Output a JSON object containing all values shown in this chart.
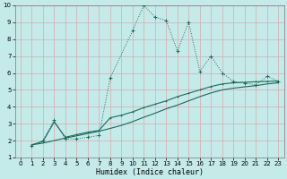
{
  "xlabel": "Humidex (Indice chaleur)",
  "xlim": [
    -0.5,
    23.5
  ],
  "ylim": [
    1,
    10
  ],
  "yticks": [
    1,
    2,
    3,
    4,
    5,
    6,
    7,
    8,
    9,
    10
  ],
  "xticks": [
    0,
    1,
    2,
    3,
    4,
    5,
    6,
    7,
    8,
    9,
    10,
    11,
    12,
    13,
    14,
    15,
    16,
    17,
    18,
    19,
    20,
    21,
    22,
    23
  ],
  "bg_color": "#c5eaea",
  "grid_color": "#dba8a8",
  "line_color": "#1a6b5a",
  "series1_x": [
    1,
    2,
    3,
    4,
    5,
    6,
    7,
    8,
    10,
    11,
    12,
    13,
    14,
    15,
    16,
    17,
    18,
    19,
    20,
    21,
    22,
    23
  ],
  "series1_y": [
    1.7,
    2.0,
    3.2,
    2.1,
    2.1,
    2.2,
    2.3,
    5.7,
    8.5,
    10.0,
    9.3,
    9.1,
    7.3,
    9.0,
    6.1,
    7.0,
    6.0,
    5.5,
    5.4,
    5.3,
    5.8,
    5.5
  ],
  "series2_x": [
    1,
    2,
    3,
    4,
    5,
    6,
    7,
    8,
    9,
    10,
    11,
    12,
    13,
    14,
    15,
    16,
    17,
    18,
    19,
    20,
    21,
    22,
    23
  ],
  "series2_y": [
    1.75,
    1.95,
    3.1,
    2.2,
    2.35,
    2.5,
    2.6,
    3.35,
    3.5,
    3.7,
    3.95,
    4.15,
    4.35,
    4.6,
    4.8,
    5.0,
    5.2,
    5.35,
    5.42,
    5.45,
    5.48,
    5.5,
    5.52
  ],
  "series3_x": [
    1,
    2,
    3,
    4,
    5,
    6,
    7,
    8,
    9,
    10,
    11,
    12,
    13,
    14,
    15,
    16,
    17,
    18,
    19,
    20,
    21,
    22,
    23
  ],
  "series3_y": [
    1.75,
    1.85,
    2.0,
    2.15,
    2.28,
    2.42,
    2.55,
    2.72,
    2.9,
    3.12,
    3.38,
    3.62,
    3.88,
    4.1,
    4.35,
    4.6,
    4.82,
    5.0,
    5.1,
    5.18,
    5.25,
    5.35,
    5.42
  ]
}
